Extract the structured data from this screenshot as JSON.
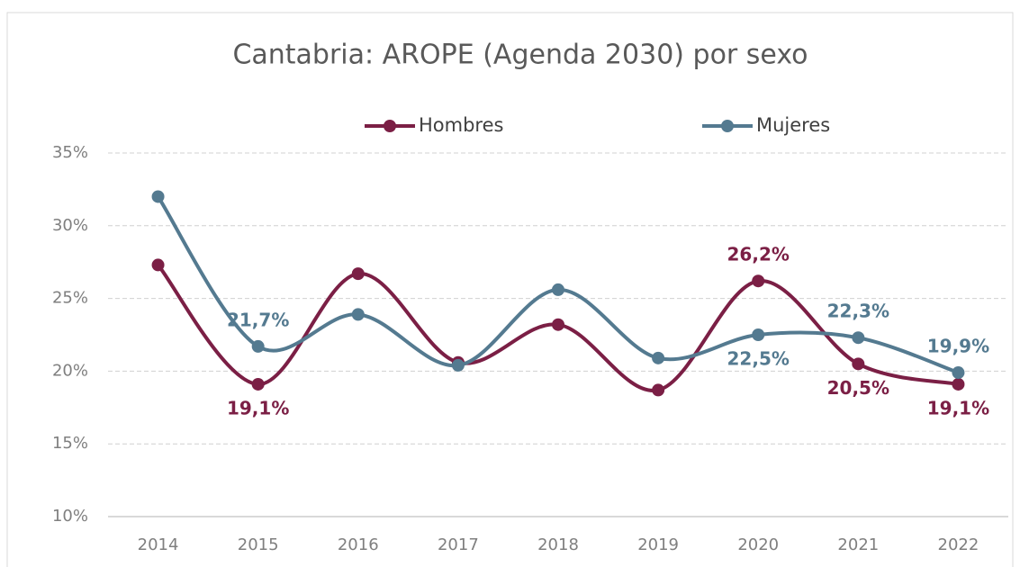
{
  "chart_data": {
    "type": "line",
    "title": "Cantabria: AROPE (Agenda 2030) por sexo",
    "categories": [
      "2014",
      "2015",
      "2016",
      "2017",
      "2018",
      "2019",
      "2020",
      "2021",
      "2022"
    ],
    "series": [
      {
        "name": "Hombres",
        "color": "#7b1f45",
        "values": [
          27.3,
          19.1,
          26.7,
          20.6,
          23.2,
          18.7,
          26.2,
          20.5,
          19.1
        ],
        "value_labels": [
          null,
          "19,1%",
          null,
          null,
          null,
          null,
          "26,2%",
          "20,5%",
          "19,1%"
        ]
      },
      {
        "name": "Mujeres",
        "color": "#547a90",
        "values": [
          32.0,
          21.7,
          23.9,
          20.4,
          25.6,
          20.9,
          22.5,
          22.3,
          19.9
        ],
        "value_labels": [
          null,
          "21,7%",
          null,
          null,
          null,
          null,
          "22,5%",
          "22,3%",
          "19,9%"
        ]
      }
    ],
    "ylim": [
      10,
      35
    ],
    "yticks": [
      {
        "value": 10,
        "label": "10%"
      },
      {
        "value": 15,
        "label": "15%"
      },
      {
        "value": 20,
        "label": "20%"
      },
      {
        "value": 25,
        "label": "25%"
      },
      {
        "value": 30,
        "label": "30%"
      },
      {
        "value": 35,
        "label": "35%"
      }
    ],
    "grid": true,
    "legend": "top",
    "smooth": true
  }
}
